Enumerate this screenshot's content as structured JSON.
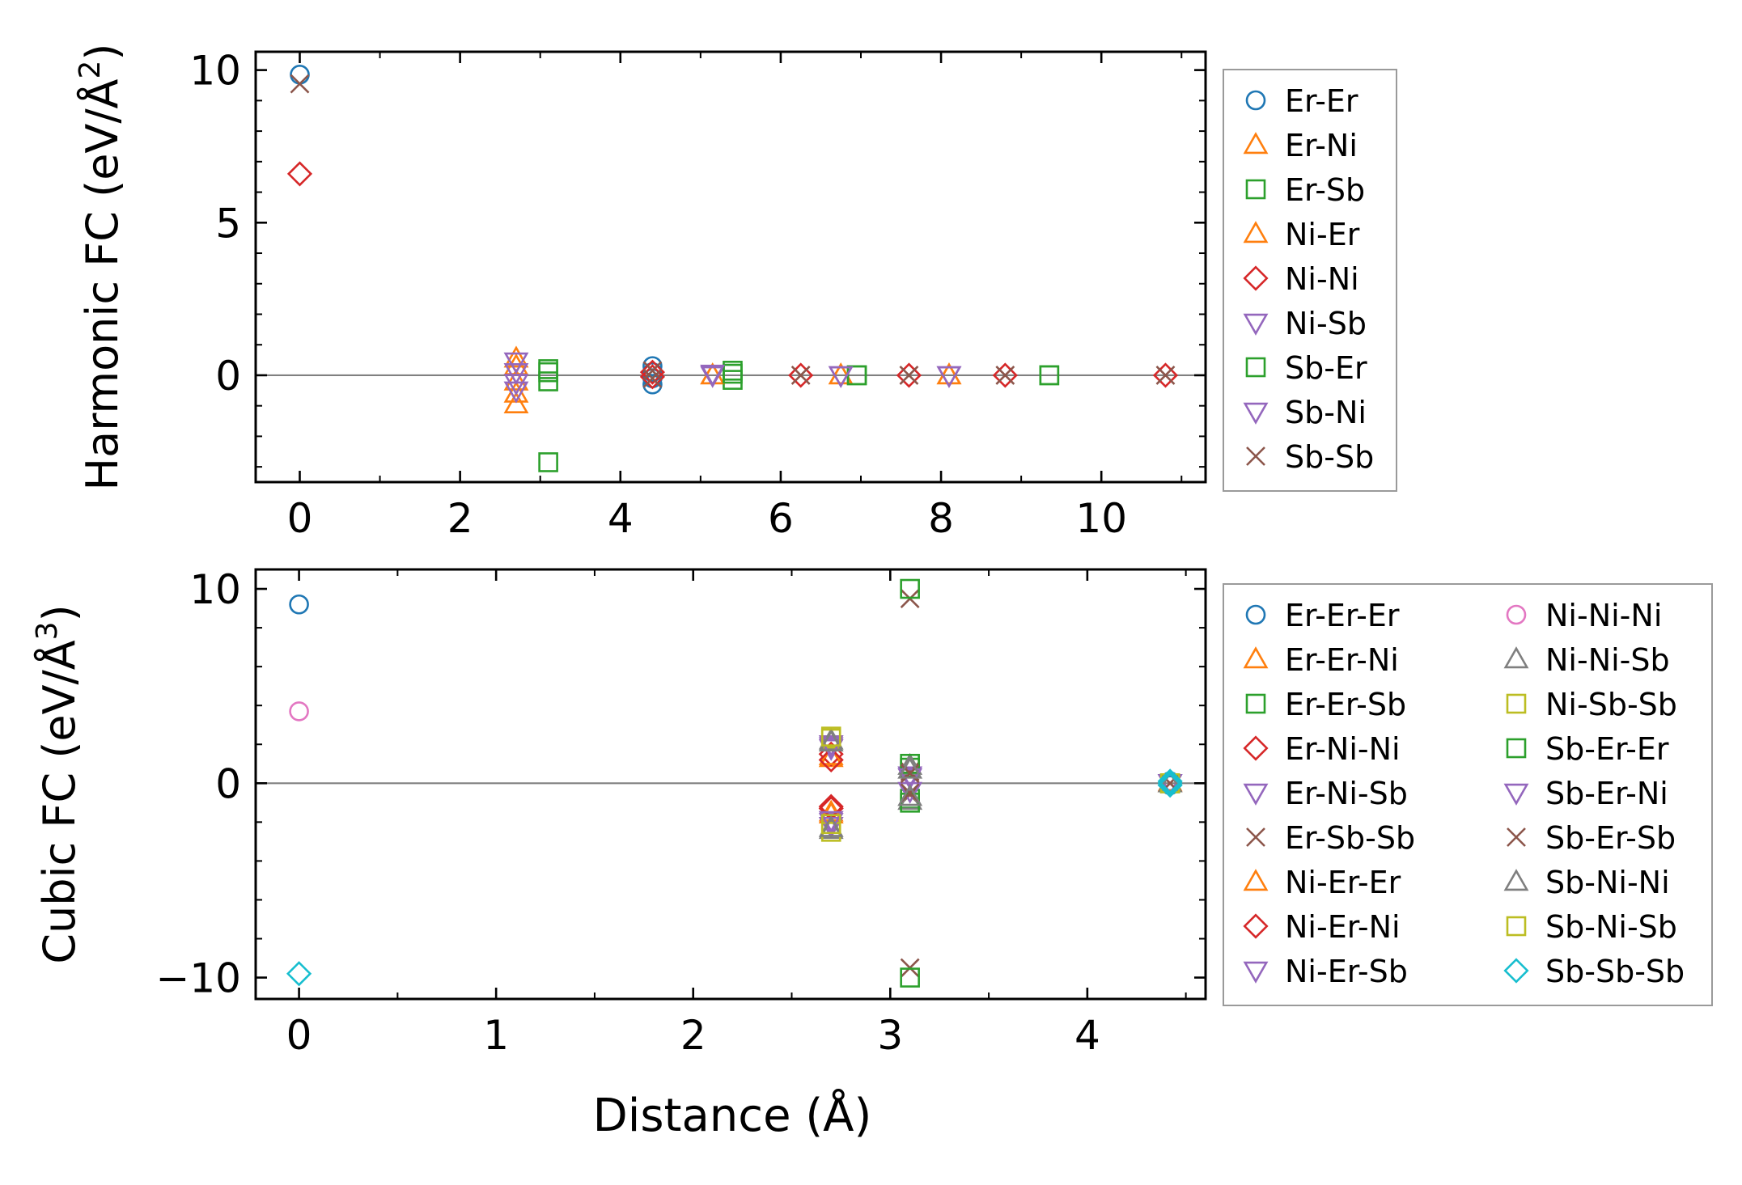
{
  "chart_data": [
    {
      "type": "scatter",
      "title": "",
      "xlabel": "",
      "ylabel": "Harmonic FC (eV/Å²)",
      "ylabel_parts": [
        "Harmonic FC (eV/Å",
        "2",
        ")"
      ],
      "xlim": [
        -0.55,
        11.3
      ],
      "ylim": [
        -3.5,
        10.6
      ],
      "xticks": [
        0,
        2,
        4,
        6,
        8,
        10
      ],
      "xtick_labels": [
        "0",
        "2",
        "4",
        "6",
        "8",
        "10"
      ],
      "yticks": [
        0,
        5,
        10
      ],
      "ytick_labels": [
        "0",
        "5",
        "10"
      ],
      "legend_position": "outside-right",
      "zero_line": true,
      "series": [
        {
          "name": "Er-Er",
          "marker": "circle",
          "color": "#1f77b4",
          "points": [
            [
              0,
              9.85
            ],
            [
              4.4,
              0.3
            ],
            [
              4.4,
              -0.3
            ],
            [
              4.4,
              0.1
            ],
            [
              4.4,
              -0.1
            ]
          ]
        },
        {
          "name": "Er-Ni",
          "marker": "triangle-up",
          "color": "#ff7f0e",
          "points": [
            [
              2.7,
              0.55
            ],
            [
              2.7,
              -0.95
            ],
            [
              2.7,
              -0.2
            ],
            [
              5.15,
              0.0
            ],
            [
              6.75,
              0.0
            ],
            [
              8.1,
              0.0
            ]
          ]
        },
        {
          "name": "Er-Sb",
          "marker": "square",
          "color": "#2ca02c",
          "points": [
            [
              3.1,
              0.2
            ],
            [
              3.1,
              -0.2
            ],
            [
              3.1,
              -2.85
            ],
            [
              5.4,
              0.15
            ],
            [
              5.4,
              -0.15
            ],
            [
              6.95,
              0.0
            ],
            [
              9.35,
              0.0
            ]
          ]
        },
        {
          "name": "Ni-Er",
          "marker": "triangle-up",
          "color": "#ff7f0e",
          "points": [
            [
              2.7,
              0.3
            ],
            [
              2.7,
              -0.6
            ],
            [
              5.15,
              0.0
            ],
            [
              6.75,
              0.0
            ],
            [
              8.1,
              0.0
            ]
          ]
        },
        {
          "name": "Ni-Ni",
          "marker": "diamond",
          "color": "#d62728",
          "points": [
            [
              0,
              6.6
            ],
            [
              4.4,
              0.1
            ],
            [
              4.4,
              -0.05
            ],
            [
              6.25,
              0.0
            ],
            [
              7.6,
              0.0
            ],
            [
              8.8,
              0.0
            ],
            [
              10.8,
              0.0
            ]
          ]
        },
        {
          "name": "Ni-Sb",
          "marker": "triangle-down",
          "color": "#9467bd",
          "points": [
            [
              2.7,
              0.45
            ],
            [
              2.7,
              -0.25
            ],
            [
              2.7,
              -0.5
            ],
            [
              5.15,
              0.0
            ],
            [
              6.75,
              0.0
            ],
            [
              8.1,
              0.0
            ]
          ]
        },
        {
          "name": "Sb-Er",
          "marker": "square",
          "color": "#2ca02c",
          "points": [
            [
              3.1,
              0.1
            ],
            [
              5.4,
              0.05
            ],
            [
              6.95,
              0.0
            ],
            [
              9.35,
              0.0
            ]
          ]
        },
        {
          "name": "Sb-Ni",
          "marker": "triangle-down",
          "color": "#9467bd",
          "points": [
            [
              2.7,
              0.1
            ],
            [
              5.15,
              0.05
            ],
            [
              6.75,
              0.0
            ],
            [
              8.1,
              0.0
            ]
          ]
        },
        {
          "name": "Sb-Sb",
          "marker": "x",
          "color": "#8c564b",
          "points": [
            [
              0,
              9.55
            ],
            [
              4.4,
              0.15
            ],
            [
              4.4,
              -0.1
            ],
            [
              6.25,
              0.0
            ],
            [
              7.6,
              0.0
            ],
            [
              8.8,
              0.0
            ],
            [
              10.8,
              0.0
            ]
          ]
        }
      ]
    },
    {
      "type": "scatter",
      "title": "",
      "xlabel": "Distance (Å)",
      "ylabel": "Cubic FC (eV/Å³)",
      "ylabel_parts": [
        "Cubic FC (eV/Å",
        "3",
        ")"
      ],
      "xlim": [
        -0.22,
        4.6
      ],
      "ylim": [
        -11.1,
        11.0
      ],
      "xticks": [
        0,
        1,
        2,
        3,
        4
      ],
      "xtick_labels": [
        "0",
        "1",
        "2",
        "3",
        "4"
      ],
      "yticks": [
        -10,
        0,
        10
      ],
      "ytick_labels": [
        "−10",
        "0",
        "10"
      ],
      "legend_position": "outside-right",
      "legend_columns": 2,
      "zero_line": true,
      "series": [
        {
          "name": "Er-Er-Er",
          "marker": "circle",
          "color": "#1f77b4",
          "points": [
            [
              0,
              9.2
            ],
            [
              4.42,
              0.1
            ],
            [
              4.42,
              -0.1
            ]
          ]
        },
        {
          "name": "Er-Er-Ni",
          "marker": "triangle-up",
          "color": "#ff7f0e",
          "points": [
            [
              2.7,
              1.3
            ],
            [
              2.7,
              -1.6
            ],
            [
              4.42,
              0.05
            ]
          ]
        },
        {
          "name": "Er-Er-Sb",
          "marker": "square",
          "color": "#2ca02c",
          "points": [
            [
              3.1,
              0.8
            ],
            [
              3.1,
              -0.8
            ],
            [
              4.42,
              0.0
            ]
          ]
        },
        {
          "name": "Er-Ni-Ni",
          "marker": "diamond",
          "color": "#d62728",
          "points": [
            [
              2.7,
              1.5
            ],
            [
              2.7,
              -1.3
            ],
            [
              4.42,
              0.0
            ]
          ]
        },
        {
          "name": "Er-Ni-Sb",
          "marker": "triangle-down",
          "color": "#9467bd",
          "points": [
            [
              2.7,
              1.8
            ],
            [
              2.7,
              -2.0
            ],
            [
              3.1,
              0.4
            ],
            [
              4.42,
              0.0
            ]
          ]
        },
        {
          "name": "Er-Sb-Sb",
          "marker": "x",
          "color": "#8c564b",
          "points": [
            [
              3.1,
              9.5
            ],
            [
              3.1,
              -9.5
            ],
            [
              3.1,
              0.6
            ],
            [
              3.1,
              -0.6
            ],
            [
              4.42,
              0.0
            ]
          ]
        },
        {
          "name": "Ni-Er-Er",
          "marker": "triangle-up",
          "color": "#ff7f0e",
          "points": [
            [
              2.7,
              1.4
            ],
            [
              2.7,
              -1.5
            ],
            [
              4.42,
              0.0
            ]
          ]
        },
        {
          "name": "Ni-Er-Ni",
          "marker": "diamond",
          "color": "#d62728",
          "points": [
            [
              2.7,
              1.2
            ],
            [
              2.7,
              -1.2
            ],
            [
              4.42,
              0.0
            ]
          ]
        },
        {
          "name": "Ni-Er-Sb",
          "marker": "triangle-down",
          "color": "#9467bd",
          "points": [
            [
              2.7,
              2.0
            ],
            [
              2.7,
              -2.2
            ],
            [
              3.1,
              -0.4
            ],
            [
              4.42,
              0.0
            ]
          ]
        },
        {
          "name": "Ni-Ni-Ni",
          "marker": "circle",
          "color": "#e377c2",
          "points": [
            [
              0,
              3.7
            ],
            [
              4.42,
              0.0
            ]
          ]
        },
        {
          "name": "Ni-Ni-Sb",
          "marker": "triangle-up",
          "color": "#7f7f7f",
          "points": [
            [
              2.7,
              2.2
            ],
            [
              2.7,
              -2.4
            ],
            [
              3.1,
              0.9
            ],
            [
              3.1,
              -0.9
            ],
            [
              4.42,
              0.0
            ]
          ]
        },
        {
          "name": "Ni-Sb-Sb",
          "marker": "square",
          "color": "#bcbd22",
          "points": [
            [
              2.7,
              2.3
            ],
            [
              2.7,
              -2.5
            ],
            [
              4.42,
              0.0
            ]
          ]
        },
        {
          "name": "Sb-Er-Er",
          "marker": "square",
          "color": "#2ca02c",
          "points": [
            [
              3.1,
              10.0
            ],
            [
              3.1,
              -10.0
            ],
            [
              3.1,
              1.0
            ],
            [
              3.1,
              -1.0
            ],
            [
              4.42,
              0.0
            ]
          ]
        },
        {
          "name": "Sb-Er-Ni",
          "marker": "triangle-down",
          "color": "#9467bd",
          "points": [
            [
              2.7,
              1.9
            ],
            [
              2.7,
              -1.9
            ],
            [
              3.1,
              0.3
            ],
            [
              4.42,
              0.0
            ]
          ]
        },
        {
          "name": "Sb-Er-Sb",
          "marker": "x",
          "color": "#8c564b",
          "points": [
            [
              3.1,
              0.5
            ],
            [
              3.1,
              -0.5
            ],
            [
              4.42,
              0.0
            ]
          ]
        },
        {
          "name": "Sb-Ni-Ni",
          "marker": "triangle-up",
          "color": "#7f7f7f",
          "points": [
            [
              2.7,
              2.1
            ],
            [
              2.7,
              -2.3
            ],
            [
              3.1,
              0.7
            ],
            [
              3.1,
              -0.7
            ],
            [
              4.42,
              0.0
            ]
          ]
        },
        {
          "name": "Sb-Ni-Sb",
          "marker": "square",
          "color": "#bcbd22",
          "points": [
            [
              2.7,
              2.4
            ],
            [
              2.7,
              -2.1
            ],
            [
              4.42,
              0.0
            ]
          ]
        },
        {
          "name": "Sb-Sb-Sb",
          "marker": "diamond",
          "color": "#17becf",
          "points": [
            [
              0,
              -9.8
            ],
            [
              4.42,
              0.1
            ],
            [
              4.42,
              -0.1
            ],
            [
              4.42,
              0.0
            ]
          ]
        }
      ]
    }
  ]
}
